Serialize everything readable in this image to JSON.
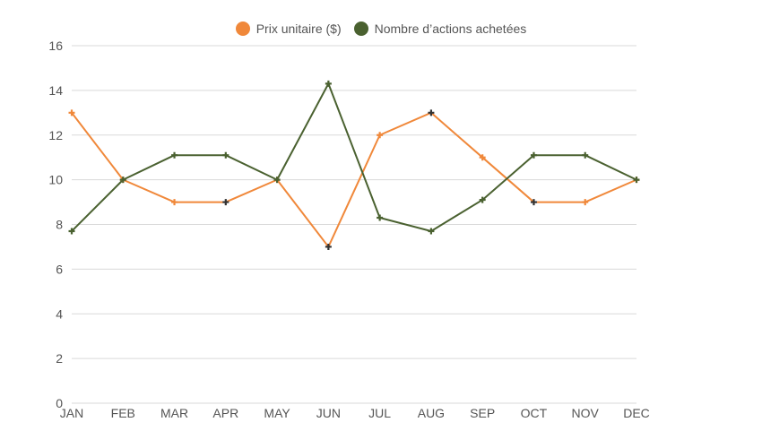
{
  "chart_data": {
    "type": "line",
    "title": "",
    "xlabel": "",
    "ylabel": "",
    "categories": [
      "JAN",
      "FEB",
      "MAR",
      "APR",
      "MAY",
      "JUN",
      "JUL",
      "AUG",
      "SEP",
      "OCT",
      "NOV",
      "DEC"
    ],
    "ylim": [
      0,
      16
    ],
    "yticks": [
      "0",
      "2",
      "4",
      "6",
      "8",
      "10",
      "12",
      "14",
      "16"
    ],
    "grid": true,
    "legend_position": "top-center",
    "series": [
      {
        "name": "Prix unitaire ($)",
        "color": "#f0883a",
        "values": [
          13,
          10,
          9,
          9,
          10,
          7,
          12,
          13,
          11,
          9,
          9,
          10
        ]
      },
      {
        "name": "Nombre d’actions achetées",
        "color": "#4a6130",
        "values": [
          7.7,
          10,
          11.1,
          11.1,
          10,
          14.3,
          8.3,
          7.7,
          9.1,
          11.1,
          11.1,
          10
        ]
      }
    ],
    "highlight_color": "#333333",
    "highlight_points": [
      {
        "series": 0,
        "index": 3
      },
      {
        "series": 0,
        "index": 5
      },
      {
        "series": 0,
        "index": 7
      },
      {
        "series": 0,
        "index": 9
      }
    ]
  }
}
